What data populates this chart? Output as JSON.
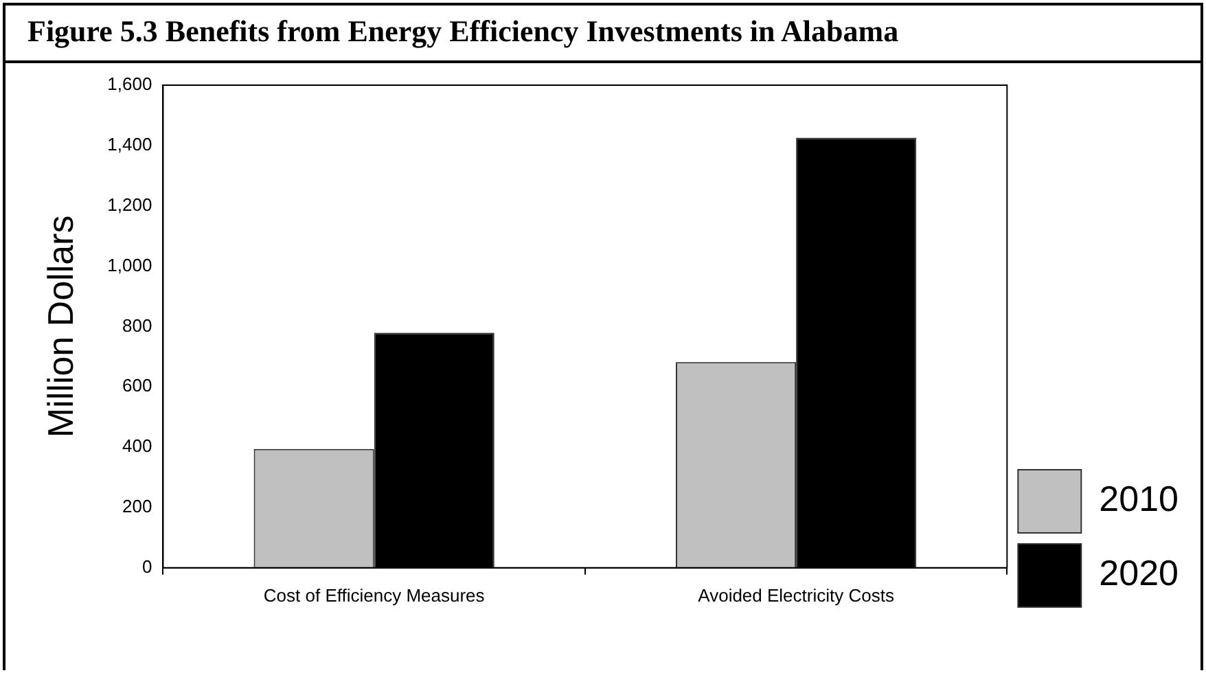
{
  "chart_data": {
    "type": "bar",
    "title": "Figure 5.3  Benefits from Energy Efficiency Investments in Alabama",
    "ylabel": "Million Dollars",
    "categories": [
      "Cost of Efficiency Measures",
      "Avoided Electricity Costs"
    ],
    "series": [
      {
        "name": "2010",
        "color": "#c0c0c0",
        "values": [
          394,
          682
        ]
      },
      {
        "name": "2020",
        "color": "#000000",
        "values": [
          779,
          1426
        ]
      }
    ],
    "ylim": [
      0,
      1600
    ],
    "yticks": [
      0,
      {
        "value": 200,
        "label": "200"
      },
      {
        "value": 400,
        "label": "400"
      },
      {
        "value": 600,
        "label": "600"
      },
      {
        "value": 800,
        "label": "800"
      },
      {
        "value": 1000,
        "label": "1,000"
      },
      {
        "value": 1200,
        "label": "1,200"
      },
      {
        "value": 1400,
        "label": "1,400"
      },
      {
        "value": 1600,
        "label": "1,600"
      }
    ],
    "grid": false,
    "legend": "bottom right"
  }
}
